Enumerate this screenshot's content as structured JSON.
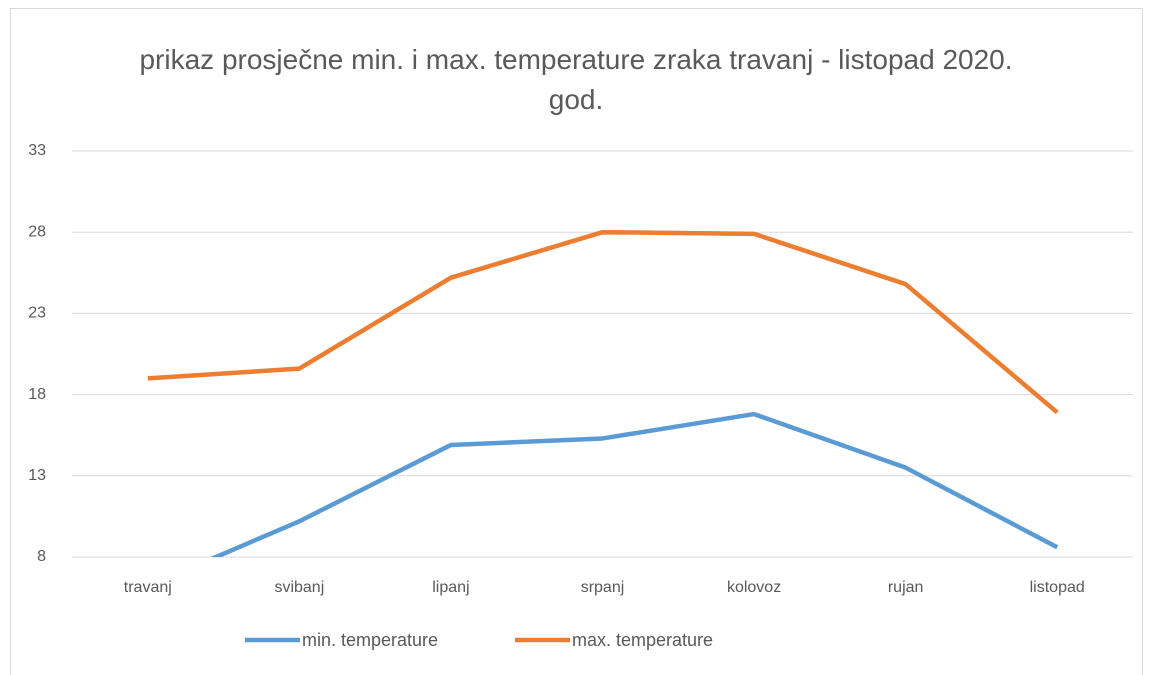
{
  "chart_data": {
    "type": "line",
    "title": "prikaz prosječne min. i max. temperature zraka travanj - listopad 2020. god.",
    "categories": [
      "travanj",
      "svibanj",
      "lipanj",
      "srpanj",
      "kolovoz",
      "rujan",
      "listopad"
    ],
    "series": [
      {
        "name": "min. temperature",
        "color": "#5b9bd5",
        "values": [
          6.2,
          10.2,
          14.9,
          15.3,
          16.8,
          13.5,
          8.6
        ]
      },
      {
        "name": "max. temperature",
        "color": "#ed7d31",
        "values": [
          19.0,
          19.6,
          25.2,
          28.0,
          27.9,
          24.8,
          16.9
        ]
      }
    ],
    "ylim": [
      8,
      33
    ],
    "yticks": [
      8,
      13,
      18,
      23,
      28,
      33
    ],
    "grid": true,
    "legend": "bottom"
  }
}
